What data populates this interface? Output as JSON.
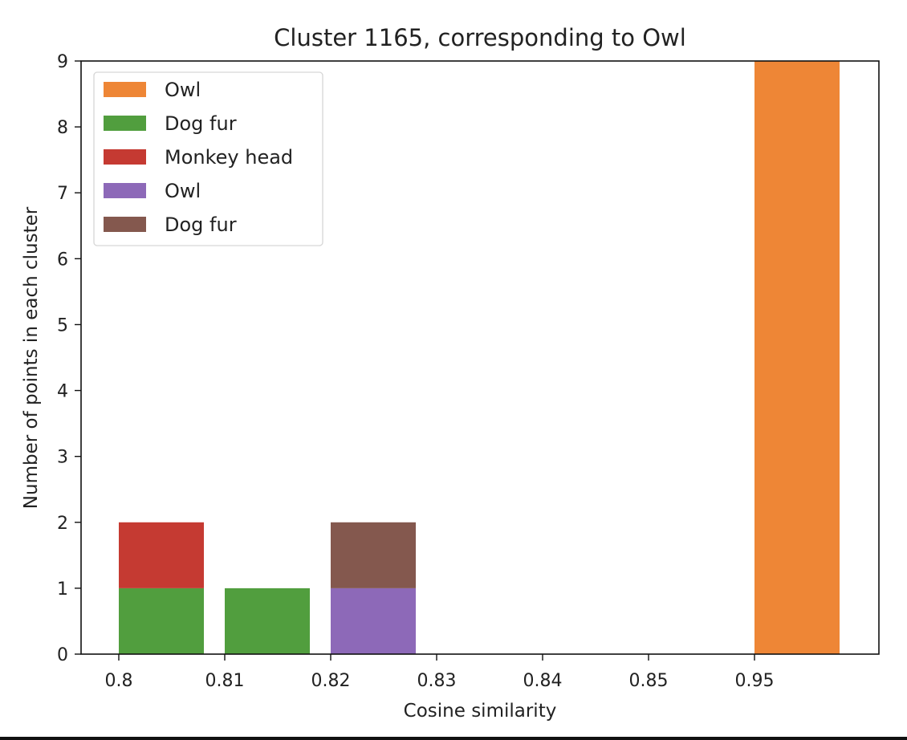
{
  "chart_data": {
    "type": "bar",
    "stacked": true,
    "title": "Cluster 1165, corresponding to Owl",
    "xlabel": "Cosine similarity",
    "ylabel": "Number of points in each cluster",
    "categories": [
      "0.8",
      "0.81",
      "0.82",
      "0.83",
      "0.84",
      "0.85",
      "0.95"
    ],
    "ylim": [
      0,
      9
    ],
    "yticks": [
      "0",
      "1",
      "2",
      "3",
      "4",
      "5",
      "6",
      "7",
      "8",
      "9"
    ],
    "grid": false,
    "legend_position": "top-left",
    "series": [
      {
        "name": "Owl",
        "color": "#ee8636",
        "values": [
          0,
          0,
          0,
          0,
          0,
          0,
          9
        ]
      },
      {
        "name": "Dog fur",
        "color": "#519e3e",
        "values": [
          1,
          1,
          0,
          0,
          0,
          0,
          0
        ]
      },
      {
        "name": "Monkey head",
        "color": "#c53a32",
        "values": [
          1,
          0,
          0,
          0,
          0,
          0,
          0
        ]
      },
      {
        "name": "Owl",
        "color": "#8d69b8",
        "values": [
          0,
          0,
          1,
          0,
          0,
          0,
          0
        ]
      },
      {
        "name": "Dog fur",
        "color": "#84584e",
        "values": [
          0,
          0,
          1,
          0,
          0,
          0,
          0
        ]
      }
    ]
  }
}
